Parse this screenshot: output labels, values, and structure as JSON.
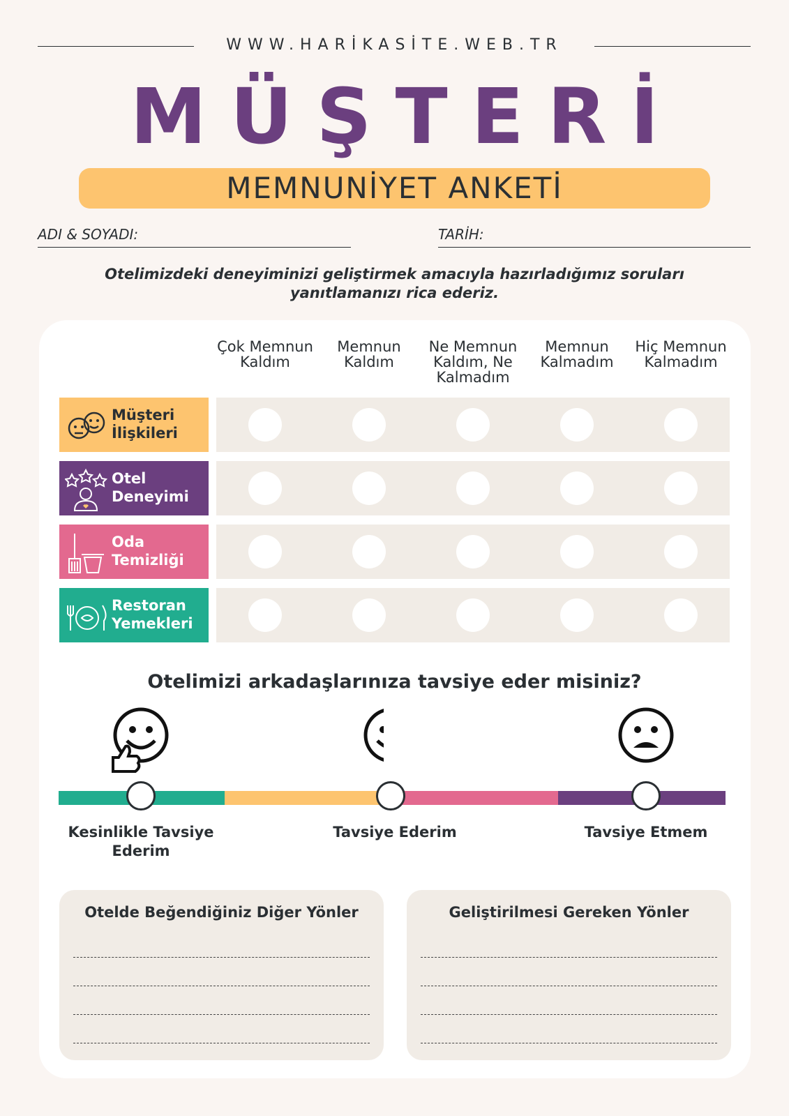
{
  "header": {
    "website": "WWW.HARİKASİTE.WEB.TR",
    "title": "MÜŞTERİ",
    "subtitle": "MEMNUNİYET ANKETİ"
  },
  "fields": {
    "name": "ADI & SOYADI:",
    "date": "TARİH:"
  },
  "intro": "Otelimizdeki deneyiminizi geliştirmek amacıyla hazırladığımız soruları yanıtlamanızı rica ederiz.",
  "table": {
    "columns": [
      "Çok Memnun Kaldım",
      "Memnun Kaldım",
      "Ne Memnun Kaldım, Ne Kalmadım",
      "Memnun Kalmadım",
      "Hiç Memnun Kalmadım"
    ],
    "rows": [
      "Müşteri İlişkileri",
      "Otel Deneyimi",
      "Oda Temizliği",
      "Restoran Yemekleri"
    ]
  },
  "recommend": {
    "question": "Otelimizi arkadaşlarınıza tavsiye eder misiniz?",
    "options": [
      "Kesinlikle Tavsiye Ederim",
      "Tavsiye Ederim",
      "Tavsiye Etmem"
    ]
  },
  "boxes": [
    "Otelde Beğendiğiniz Diğer Yönler",
    "Geliştirilmesi Gereken Yönler"
  ]
}
